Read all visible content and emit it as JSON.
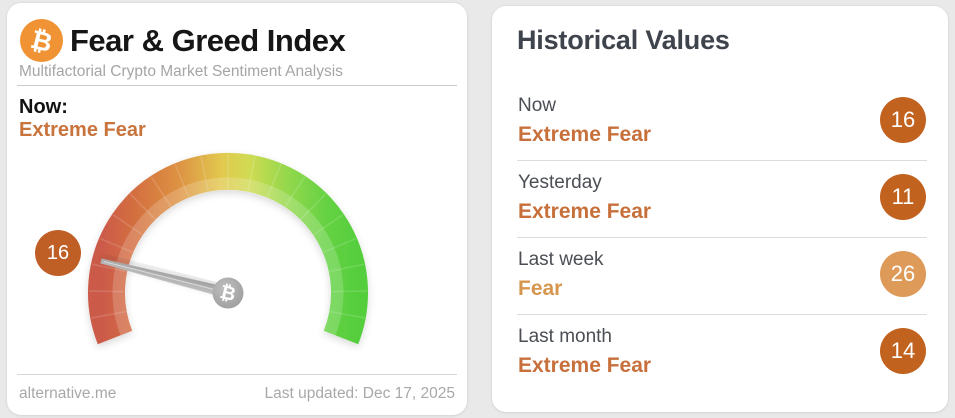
{
  "page": {
    "background": "#e9e9e9"
  },
  "left_card": {
    "title": "Fear & Greed Index",
    "subtitle": "Multifactorial Crypto Market Sentiment Analysis",
    "now_label": "Now:",
    "now_classification": "Extreme Fear",
    "gauge": {
      "value": 16,
      "min": 0,
      "max": 100
    },
    "footer": {
      "site": "alternative.me",
      "last_updated": "Last updated: Dec 17, 2025"
    }
  },
  "right_card": {
    "title": "Historical Values",
    "rows": [
      {
        "period": "Now",
        "classification": "Extreme Fear",
        "value": 16,
        "tone": "extreme_fear"
      },
      {
        "period": "Yesterday",
        "classification": "Extreme Fear",
        "value": 11,
        "tone": "extreme_fear"
      },
      {
        "period": "Last week",
        "classification": "Fear",
        "value": 26,
        "tone": "fear"
      },
      {
        "period": "Last month",
        "classification": "Extreme Fear",
        "value": 14,
        "tone": "extreme_fear"
      }
    ]
  },
  "icons": {
    "bitcoin": "₿"
  },
  "colors": {
    "bitcoin_orange": "#ef9334",
    "accent_orange": "#c8743c",
    "tones": {
      "extreme_fear": {
        "badge": "#c2621f",
        "text": "#c8703b"
      },
      "fear": {
        "badge": "#dd9a58",
        "text": "#d7964e"
      }
    },
    "gauge_gradient": [
      "#cc5a49",
      "#d4713f",
      "#dd9243",
      "#e2c94f",
      "#cfdb52",
      "#96d84d",
      "#65d243",
      "#55ce3d"
    ],
    "needle_gray": "#ababab"
  },
  "chart_data": {
    "type": "gauge",
    "title": "Fear & Greed Index",
    "value": 16,
    "min": 0,
    "max": 100,
    "classification": "Extreme Fear",
    "historical": [
      {
        "period": "Now",
        "value": 16,
        "classification": "Extreme Fear"
      },
      {
        "period": "Yesterday",
        "value": 11,
        "classification": "Extreme Fear"
      },
      {
        "period": "Last week",
        "value": 26,
        "classification": "Fear"
      },
      {
        "period": "Last month",
        "value": 14,
        "classification": "Extreme Fear"
      }
    ]
  }
}
